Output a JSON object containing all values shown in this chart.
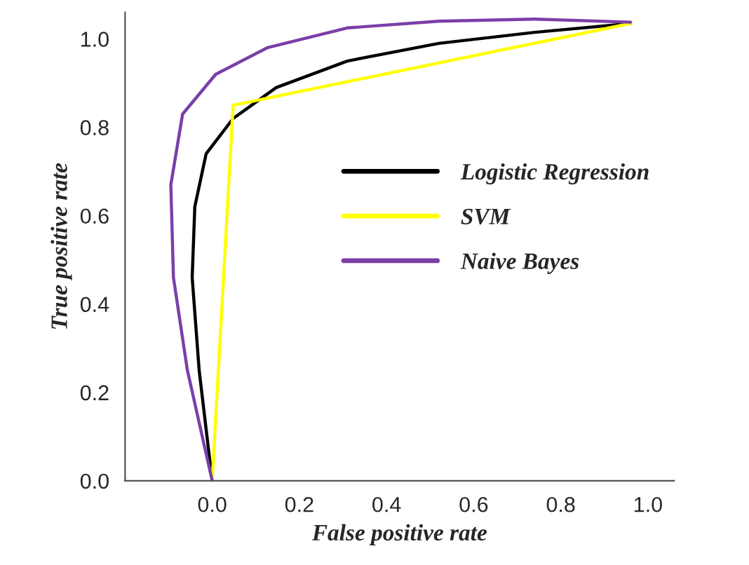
{
  "chart_data": {
    "type": "line",
    "xlabel": "False positive rate",
    "ylabel": "True positive rate",
    "xlim": [
      -0.2,
      1.06
    ],
    "ylim": [
      0,
      1.06
    ],
    "xticks": [
      {
        "value": 0,
        "label": "0.0"
      },
      0.2,
      0.4,
      0.6,
      0.8,
      {
        "value": 1,
        "label": "1.0"
      }
    ],
    "yticks": [
      {
        "value": 0,
        "label": "0.0"
      },
      0.2,
      0.4,
      0.6,
      0.8,
      {
        "value": 1,
        "label": "1.0"
      }
    ],
    "grid": false,
    "legend": "right",
    "marker": "none",
    "line_style": "solid",
    "series": [
      {
        "name": "Logistic Regression",
        "color": "#000000",
        "x": [
          0,
          -0.03,
          -0.046,
          -0.04,
          -0.014,
          0.048,
          0.147,
          0.31,
          0.52,
          0.74,
          0.96
        ],
        "values": [
          0,
          0.25,
          0.46,
          0.62,
          0.74,
          0.82,
          0.89,
          0.95,
          0.99,
          1.015,
          1.035
        ]
      },
      {
        "name": "SVM",
        "color": "#ffff00",
        "x": [
          0,
          0.048,
          0.96
        ],
        "values": [
          0,
          0.85,
          1.035
        ]
      },
      {
        "name": "Naive Bayes",
        "color": "#7b3fa8",
        "x": [
          0,
          -0.057,
          -0.089,
          -0.095,
          -0.068,
          0.008,
          0.126,
          0.31,
          0.52,
          0.74,
          0.96
        ],
        "values": [
          0,
          0.25,
          0.46,
          0.67,
          0.83,
          0.92,
          0.98,
          1.025,
          1.04,
          1.045,
          1.038
        ]
      }
    ]
  }
}
